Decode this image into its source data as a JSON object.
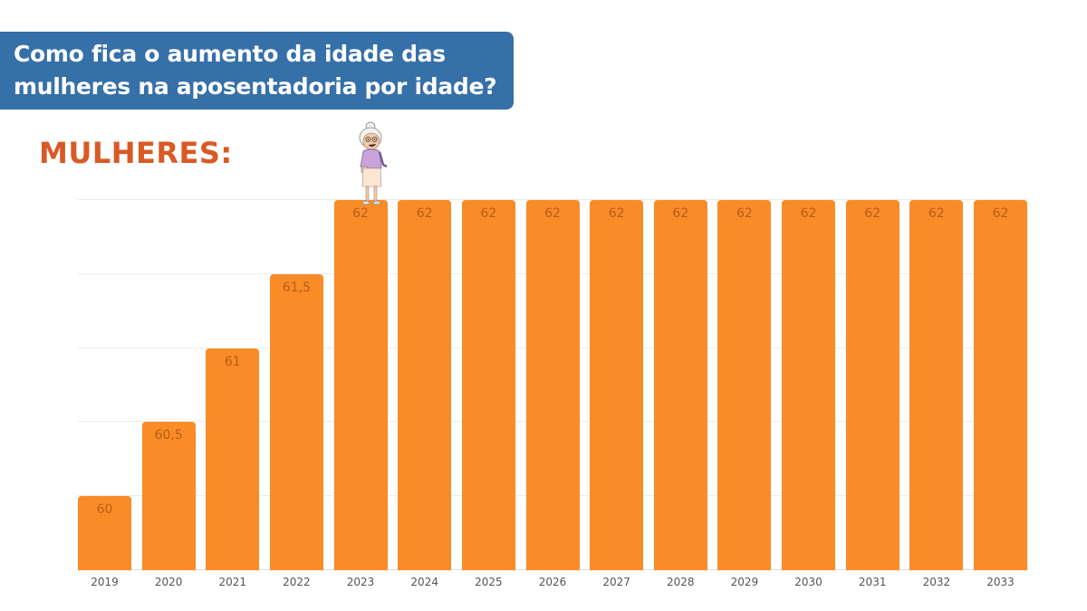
{
  "header": {
    "title_lines": [
      "Como fica o aumento da idade das",
      "mulheres na aposentadoria por idade?"
    ]
  },
  "section_label": "MULHERES:",
  "illustration": "elderly-woman-icon",
  "colors": {
    "bar": "#f98c26",
    "title_bg": "#3670a8",
    "section_label": "#d85a26",
    "bar_label": "#b85d16"
  },
  "chart_data": {
    "type": "bar",
    "title": "Como fica o aumento da idade das mulheres na aposentadoria por idade?",
    "subtitle": "MULHERES:",
    "xlabel": "",
    "ylabel": "",
    "categories": [
      "2019",
      "2020",
      "2021",
      "2022",
      "2023",
      "2024",
      "2025",
      "2026",
      "2027",
      "2028",
      "2029",
      "2030",
      "2031",
      "2032",
      "2033"
    ],
    "values": [
      60,
      60.5,
      61,
      61.5,
      62,
      62,
      62,
      62,
      62,
      62,
      62,
      62,
      62,
      62,
      62
    ],
    "value_labels": [
      "60",
      "60,5",
      "61",
      "61,5",
      "62",
      "62",
      "62",
      "62",
      "62",
      "62",
      "62",
      "62",
      "62",
      "62",
      "62"
    ],
    "ylim": [
      59.5,
      62
    ],
    "grid": true,
    "legend": "none",
    "annotations": [
      "elderly woman illustration standing on 2023 bar"
    ]
  }
}
